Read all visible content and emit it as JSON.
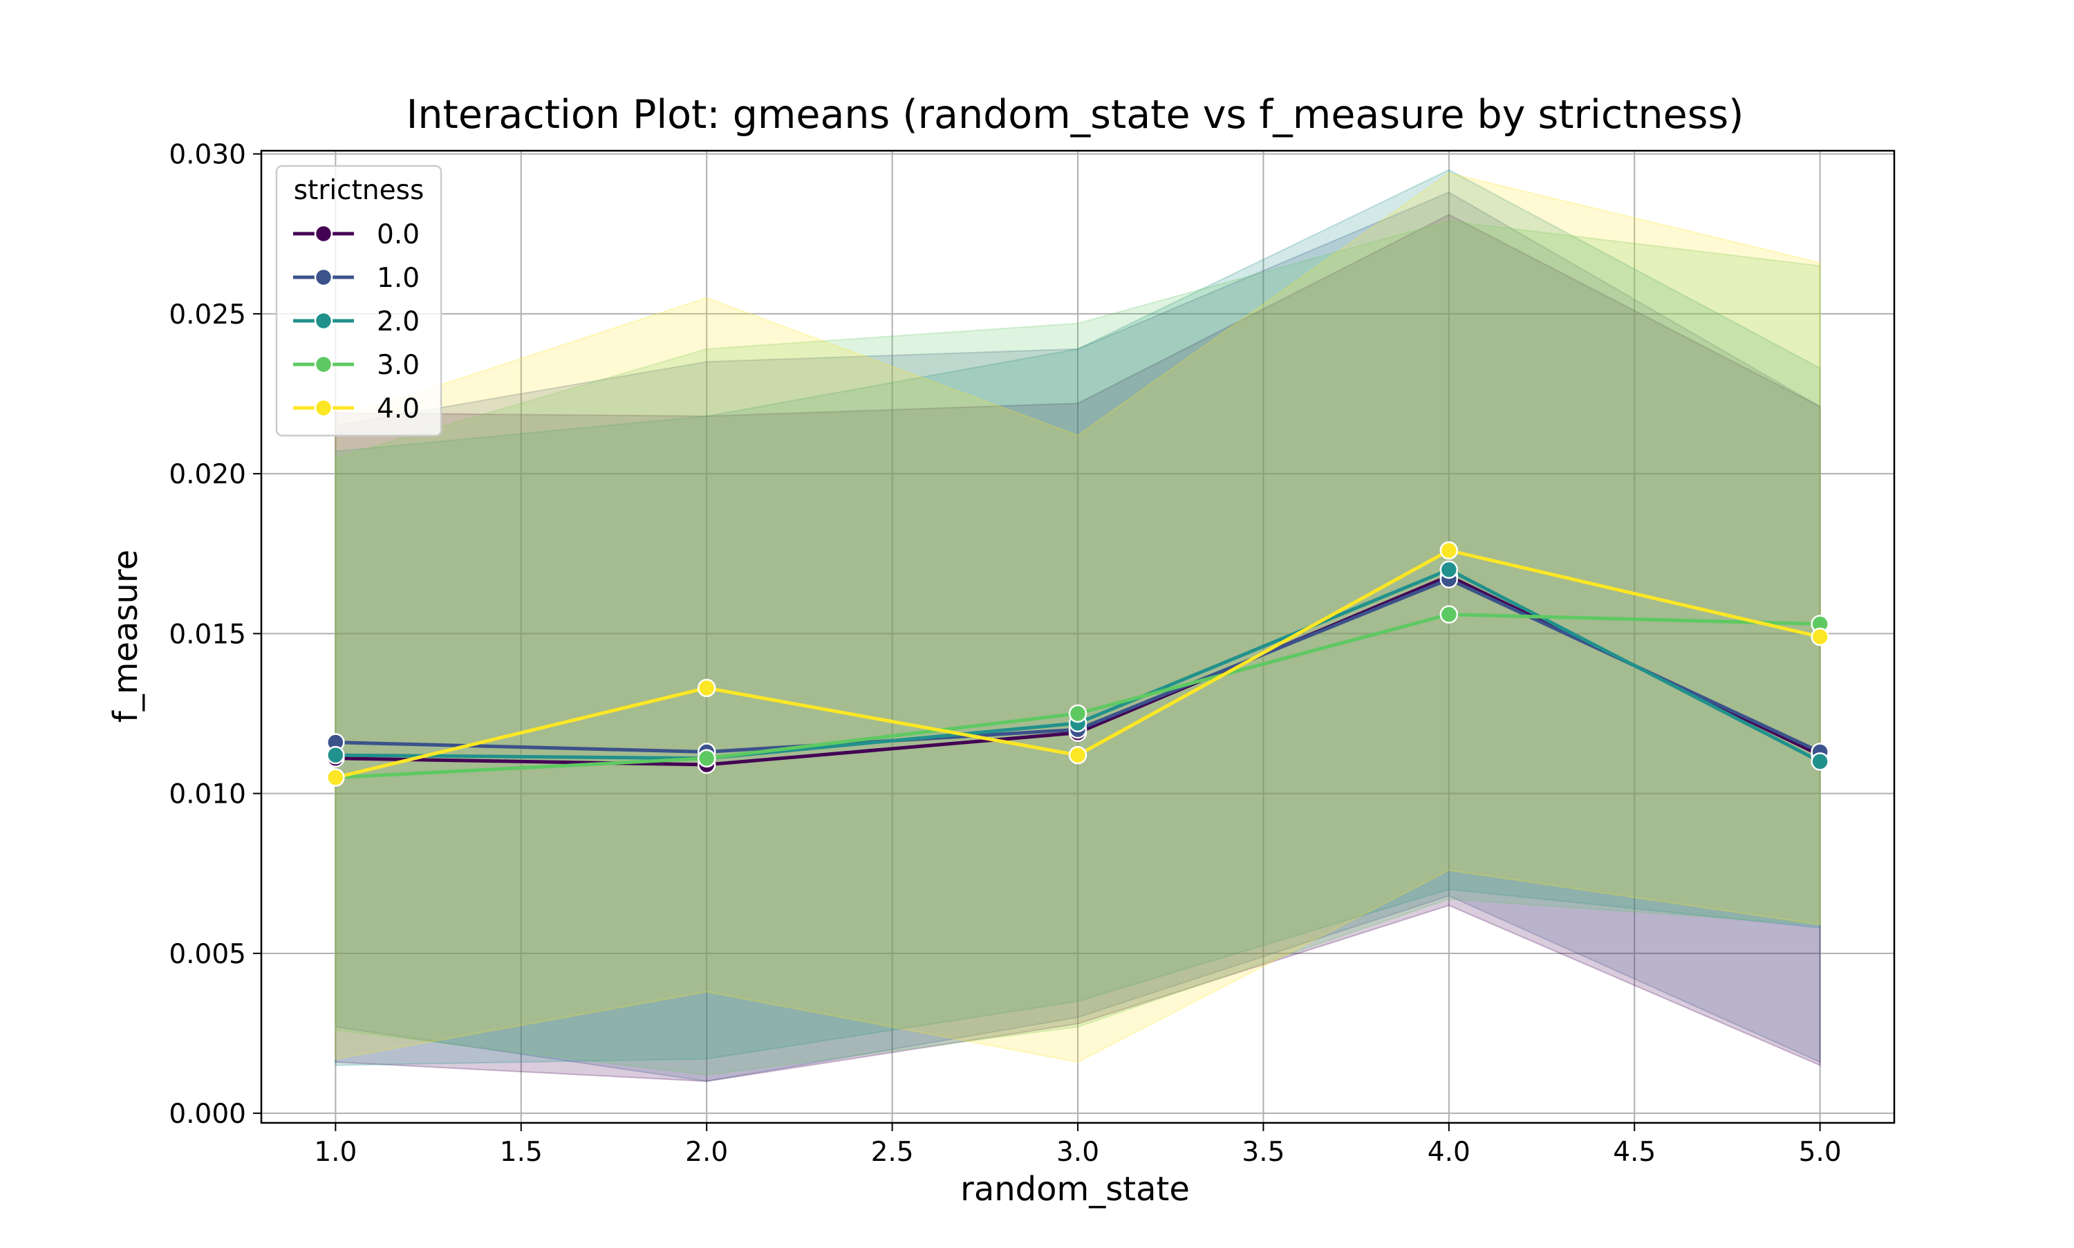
{
  "chart_data": {
    "type": "line",
    "title": "Interaction Plot: gmeans (random_state vs f_measure by strictness)",
    "xlabel": "random_state",
    "ylabel": "f_measure",
    "xlim": [
      0.8,
      5.2
    ],
    "ylim": [
      -0.0003,
      0.0301
    ],
    "x_ticks": [
      "1.0",
      "1.5",
      "2.0",
      "2.5",
      "3.0",
      "3.5",
      "4.0",
      "4.5",
      "5.0"
    ],
    "x_tick_values": [
      1.0,
      1.5,
      2.0,
      2.5,
      3.0,
      3.5,
      4.0,
      4.5,
      5.0
    ],
    "y_ticks": [
      "0.000",
      "0.005",
      "0.010",
      "0.015",
      "0.020",
      "0.025",
      "0.030"
    ],
    "y_tick_values": [
      0.0,
      0.005,
      0.01,
      0.015,
      0.02,
      0.025,
      0.03
    ],
    "grid": true,
    "legend": {
      "title": "strictness",
      "placement": "top-left"
    },
    "x": [
      1.0,
      2.0,
      3.0,
      4.0,
      5.0
    ],
    "series": [
      {
        "name": "0.0",
        "color": "#440154",
        "values": [
          0.0111,
          0.0109,
          0.0119,
          0.0168,
          0.0112
        ],
        "lower": [
          0.0016,
          0.001,
          0.0028,
          0.0065,
          0.0015
        ],
        "upper": [
          0.0219,
          0.0218,
          0.0222,
          0.0281,
          0.0221
        ]
      },
      {
        "name": "1.0",
        "color": "#3b528b",
        "values": [
          0.0116,
          0.0113,
          0.012,
          0.0167,
          0.0113
        ],
        "lower": [
          0.0027,
          0.001,
          0.003,
          0.0068,
          0.0016
        ],
        "upper": [
          0.0215,
          0.0235,
          0.0239,
          0.0288,
          0.0221
        ]
      },
      {
        "name": "2.0",
        "color": "#21918c",
        "values": [
          0.0112,
          0.0111,
          0.0122,
          0.017,
          0.011
        ],
        "lower": [
          0.0015,
          0.0017,
          0.0035,
          0.007,
          0.0058
        ],
        "upper": [
          0.0207,
          0.0218,
          0.0239,
          0.0295,
          0.0233
        ]
      },
      {
        "name": "3.0",
        "color": "#5ec962",
        "values": [
          0.0105,
          0.0111,
          0.0125,
          0.0156,
          0.0153
        ],
        "lower": [
          0.0026,
          0.0012,
          0.0027,
          0.0067,
          0.0059
        ],
        "upper": [
          0.0205,
          0.0239,
          0.0247,
          0.0279,
          0.0265
        ]
      },
      {
        "name": "4.0",
        "color": "#fde725",
        "values": [
          0.0105,
          0.0133,
          0.0112,
          0.0176,
          0.0149
        ],
        "lower": [
          0.0017,
          0.0038,
          0.0016,
          0.0076,
          0.0059
        ],
        "upper": [
          0.0217,
          0.0255,
          0.0212,
          0.0294,
          0.0266
        ]
      }
    ]
  }
}
